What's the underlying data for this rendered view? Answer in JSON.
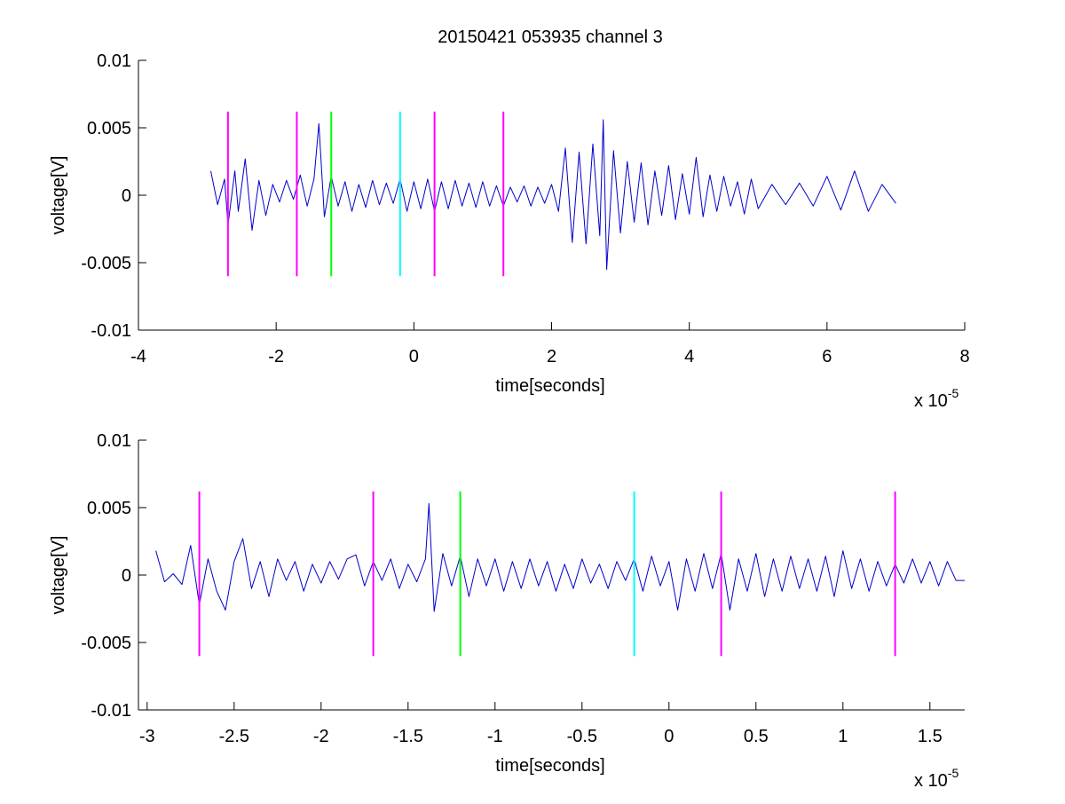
{
  "figure_title": "20150421 053935 channel 3",
  "colors": {
    "trace": "#0000cc",
    "magenta": "#ff00ff",
    "green": "#00ff00",
    "cyan": "#00ffff",
    "axes": "#000000",
    "background": "#ffffff"
  },
  "chart_data": [
    {
      "type": "line",
      "title": "20150421 053935 channel 3",
      "xlabel": "time[seconds]",
      "ylabel": "voltage[V]",
      "x_multiplier_label": "x 10",
      "x_multiplier_exponent": "-5",
      "xlim": [
        -4,
        8
      ],
      "ylim": [
        -0.01,
        0.01
      ],
      "xticks": [
        -4,
        -2,
        0,
        2,
        4,
        6,
        8
      ],
      "xtick_labels": [
        "-4",
        "-2",
        "0",
        "2",
        "4",
        "6",
        "8"
      ],
      "yticks": [
        -0.01,
        -0.005,
        0,
        0.005,
        0.01
      ],
      "ytick_labels": [
        "-0.01",
        "-0.005",
        "0",
        "0.005",
        "0.01"
      ],
      "grid": false,
      "series": [
        {
          "color": "#0000cc",
          "x": [
            -2.95,
            -2.85,
            -2.75,
            -2.7,
            -2.6,
            -2.55,
            -2.45,
            -2.35,
            -2.25,
            -2.15,
            -2.05,
            -1.95,
            -1.85,
            -1.75,
            -1.65,
            -1.55,
            -1.45,
            -1.38,
            -1.3,
            -1.2,
            -1.1,
            -1.0,
            -0.9,
            -0.8,
            -0.7,
            -0.6,
            -0.5,
            -0.4,
            -0.3,
            -0.2,
            -0.1,
            0.0,
            0.1,
            0.2,
            0.3,
            0.4,
            0.5,
            0.6,
            0.7,
            0.8,
            0.9,
            1.0,
            1.1,
            1.2,
            1.3,
            1.4,
            1.5,
            1.6,
            1.7,
            1.8,
            1.9,
            2.0,
            2.1,
            2.2,
            2.3,
            2.4,
            2.5,
            2.6,
            2.7,
            2.75,
            2.8,
            2.9,
            3.0,
            3.1,
            3.2,
            3.3,
            3.4,
            3.5,
            3.6,
            3.7,
            3.8,
            3.9,
            4.0,
            4.1,
            4.2,
            4.3,
            4.4,
            4.5,
            4.6,
            4.7,
            4.8,
            4.9,
            5.0,
            5.2,
            5.4,
            5.6,
            5.8,
            6.0,
            6.2,
            6.4,
            6.6,
            6.8,
            7.0
          ],
          "y": [
            0.0018,
            -0.0007,
            0.0012,
            -0.0022,
            0.0018,
            -0.0012,
            0.0027,
            -0.0026,
            0.0011,
            -0.0015,
            0.0008,
            -0.0005,
            0.0011,
            -0.0003,
            0.0015,
            -0.0008,
            0.0012,
            0.0053,
            -0.0016,
            0.0014,
            -0.0008,
            0.001,
            -0.0012,
            0.0008,
            -0.0009,
            0.0011,
            -0.0007,
            0.0009,
            -0.0006,
            0.0012,
            -0.0012,
            0.001,
            -0.001,
            0.0012,
            -0.0012,
            0.001,
            -0.001,
            0.0011,
            -0.0008,
            0.0009,
            -0.0009,
            0.001,
            -0.0008,
            0.0007,
            -0.0008,
            0.0006,
            -0.0005,
            0.0007,
            -0.0008,
            0.0006,
            -0.0006,
            0.0008,
            -0.0012,
            0.0035,
            -0.0035,
            0.0032,
            -0.0036,
            0.0038,
            -0.003,
            0.0056,
            -0.0055,
            0.0033,
            -0.0028,
            0.0025,
            -0.002,
            0.0024,
            -0.0022,
            0.0018,
            -0.0015,
            0.0022,
            -0.0018,
            0.0016,
            -0.0014,
            0.0028,
            -0.0016,
            0.0015,
            -0.0012,
            0.0014,
            -0.0008,
            0.001,
            -0.0014,
            0.0012,
            -0.001,
            0.0008,
            -0.0007,
            0.0009,
            -0.0008,
            0.0014,
            -0.0011,
            0.0018,
            -0.0012,
            0.0008,
            -0.0006
          ]
        }
      ],
      "vlines": [
        {
          "x": -2.7,
          "color": "#ff00ff",
          "ymin": -0.006,
          "ymax": 0.0062
        },
        {
          "x": -1.7,
          "color": "#ff00ff",
          "ymin": -0.006,
          "ymax": 0.0062
        },
        {
          "x": -1.2,
          "color": "#00ff00",
          "ymin": -0.006,
          "ymax": 0.0062
        },
        {
          "x": -0.2,
          "color": "#00ffff",
          "ymin": -0.006,
          "ymax": 0.0062
        },
        {
          "x": 0.3,
          "color": "#ff00ff",
          "ymin": -0.006,
          "ymax": 0.0062
        },
        {
          "x": 1.3,
          "color": "#ff00ff",
          "ymin": -0.006,
          "ymax": 0.0062
        }
      ]
    },
    {
      "type": "line",
      "title": "",
      "xlabel": "time[seconds]",
      "ylabel": "voltage[V]",
      "x_multiplier_label": "x 10",
      "x_multiplier_exponent": "-5",
      "xlim": [
        -3.05,
        1.7
      ],
      "ylim": [
        -0.01,
        0.01
      ],
      "xticks": [
        -3,
        -2.5,
        -2,
        -1.5,
        -1,
        -0.5,
        0,
        0.5,
        1,
        1.5
      ],
      "xtick_labels": [
        "-3",
        "-2.5",
        "-2",
        "-1.5",
        "-1",
        "-0.5",
        "0",
        "0.5",
        "1",
        "1.5"
      ],
      "yticks": [
        -0.01,
        -0.005,
        0,
        0.005,
        0.01
      ],
      "ytick_labels": [
        "-0.01",
        "-0.005",
        "0",
        "0.005",
        "0.01"
      ],
      "grid": false,
      "series": [
        {
          "color": "#0000cc",
          "x": [
            -2.95,
            -2.9,
            -2.85,
            -2.8,
            -2.75,
            -2.7,
            -2.65,
            -2.6,
            -2.55,
            -2.5,
            -2.45,
            -2.4,
            -2.35,
            -2.3,
            -2.25,
            -2.2,
            -2.15,
            -2.1,
            -2.05,
            -2.0,
            -1.95,
            -1.9,
            -1.85,
            -1.8,
            -1.75,
            -1.7,
            -1.65,
            -1.6,
            -1.55,
            -1.5,
            -1.45,
            -1.4,
            -1.38,
            -1.35,
            -1.3,
            -1.25,
            -1.2,
            -1.15,
            -1.1,
            -1.05,
            -1.0,
            -0.95,
            -0.9,
            -0.85,
            -0.8,
            -0.75,
            -0.7,
            -0.65,
            -0.6,
            -0.55,
            -0.5,
            -0.45,
            -0.4,
            -0.35,
            -0.3,
            -0.25,
            -0.2,
            -0.15,
            -0.1,
            -0.05,
            0.0,
            0.05,
            0.1,
            0.15,
            0.2,
            0.25,
            0.3,
            0.35,
            0.4,
            0.45,
            0.5,
            0.55,
            0.6,
            0.65,
            0.7,
            0.75,
            0.8,
            0.85,
            0.9,
            0.95,
            1.0,
            1.05,
            1.1,
            1.15,
            1.2,
            1.25,
            1.3,
            1.35,
            1.4,
            1.45,
            1.5,
            1.55,
            1.6,
            1.65,
            1.7
          ],
          "y": [
            0.0018,
            -0.0005,
            0.0001,
            -0.0007,
            0.0022,
            -0.0022,
            0.0012,
            -0.0012,
            -0.0026,
            0.001,
            0.0027,
            -0.001,
            0.001,
            -0.0016,
            0.0012,
            -0.0004,
            0.001,
            -0.0012,
            0.0008,
            -0.0006,
            0.001,
            -0.0003,
            0.0012,
            0.0015,
            -0.0008,
            0.001,
            -0.0004,
            0.0012,
            -0.001,
            0.0008,
            -0.0005,
            0.0012,
            0.0053,
            -0.0027,
            0.0016,
            -0.0008,
            0.0014,
            -0.0016,
            0.0012,
            -0.0008,
            0.0012,
            -0.0012,
            0.001,
            -0.001,
            0.0012,
            -0.0008,
            0.001,
            -0.0012,
            0.0008,
            -0.001,
            0.0012,
            -0.0006,
            0.0008,
            -0.001,
            0.001,
            -0.0004,
            0.0012,
            -0.0012,
            0.0014,
            -0.0008,
            0.001,
            -0.0026,
            0.0012,
            -0.0012,
            0.0016,
            -0.001,
            0.0016,
            -0.0026,
            0.0012,
            -0.0012,
            0.0016,
            -0.0016,
            0.0012,
            -0.0012,
            0.0014,
            -0.001,
            0.0012,
            -0.0012,
            0.0014,
            -0.0016,
            0.0018,
            -0.001,
            0.0012,
            -0.0012,
            0.001,
            -0.0008,
            0.0008,
            -0.0006,
            0.0012,
            -0.0006,
            0.001,
            -0.0008,
            0.001,
            -0.0004,
            -0.0004
          ]
        }
      ],
      "vlines": [
        {
          "x": -2.7,
          "color": "#ff00ff",
          "ymin": -0.006,
          "ymax": 0.0062
        },
        {
          "x": -1.7,
          "color": "#ff00ff",
          "ymin": -0.006,
          "ymax": 0.0062
        },
        {
          "x": -1.2,
          "color": "#00ff00",
          "ymin": -0.006,
          "ymax": 0.0062
        },
        {
          "x": -0.2,
          "color": "#00ffff",
          "ymin": -0.006,
          "ymax": 0.0062
        },
        {
          "x": 0.3,
          "color": "#ff00ff",
          "ymin": -0.006,
          "ymax": 0.0062
        },
        {
          "x": 1.3,
          "color": "#ff00ff",
          "ymin": -0.006,
          "ymax": 0.0062
        }
      ]
    }
  ]
}
